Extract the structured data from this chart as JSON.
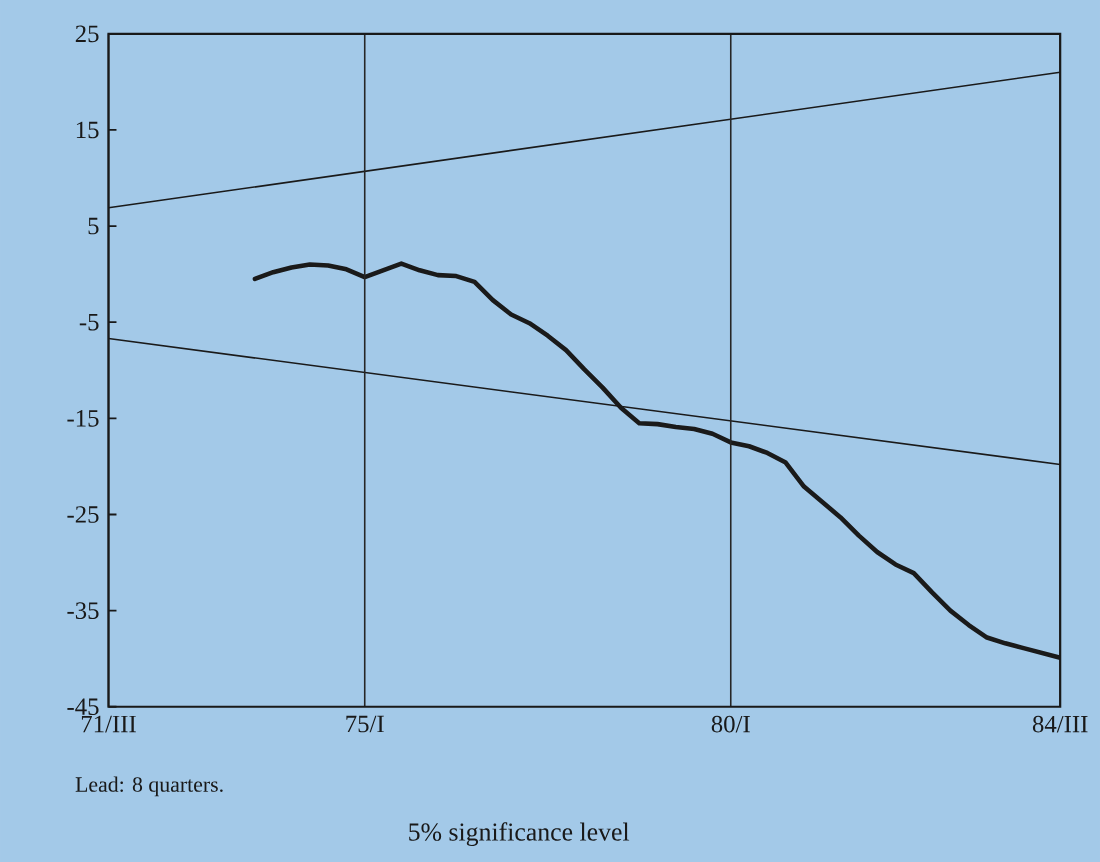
{
  "chart_data": {
    "type": "line",
    "title": "5% significance level",
    "annotations": [
      "Lead: 8 quarters."
    ],
    "categories": [
      "71/III",
      null,
      null,
      null,
      null,
      null,
      null,
      null,
      null,
      null,
      null,
      null,
      null,
      null,
      "75/I",
      null,
      null,
      null,
      null,
      null,
      null,
      null,
      null,
      null,
      null,
      null,
      null,
      null,
      null,
      null,
      null,
      null,
      null,
      null,
      "80/I",
      null,
      null,
      null,
      null,
      null,
      null,
      null,
      null,
      null,
      null,
      null,
      null,
      null,
      null,
      null,
      null,
      null,
      "84/III"
    ],
    "series": [
      {
        "color": "#1a1a1a",
        "values": [
          null,
          null,
          null,
          null,
          null,
          null,
          null,
          null,
          -0.5,
          0.2,
          0.7,
          1.0,
          0.9,
          0.5,
          -0.3,
          0.4,
          1.1,
          0.4,
          -0.1,
          -0.2,
          -0.8,
          -2.7,
          -4.2,
          -5.1,
          -6.4,
          -7.9,
          -9.9,
          -11.8,
          -13.9,
          -15.5,
          -15.6,
          -15.9,
          -16.1,
          -16.6,
          -17.5,
          -17.9,
          -18.6,
          -19.6,
          -22.1,
          -23.7,
          -25.3,
          -27.2,
          -28.9,
          -30.2,
          -31.1,
          -33.1,
          -35.0,
          -36.5,
          -37.8,
          -38.4,
          -38.9,
          -39.4,
          -39.9
        ]
      },
      {
        "color": "#1a1a1a",
        "x": [
          "71/III",
          "84/III"
        ],
        "values": [
          6.9,
          21.0
        ]
      },
      {
        "color": "#1a1a1a",
        "x": [
          "71/III",
          "84/III"
        ],
        "values": [
          -6.7,
          -19.8
        ]
      }
    ],
    "ylim": [
      -45,
      25
    ],
    "yticks": [
      -45,
      -35,
      -25,
      -15,
      -5,
      5,
      15,
      25
    ],
    "grid": "x"
  }
}
